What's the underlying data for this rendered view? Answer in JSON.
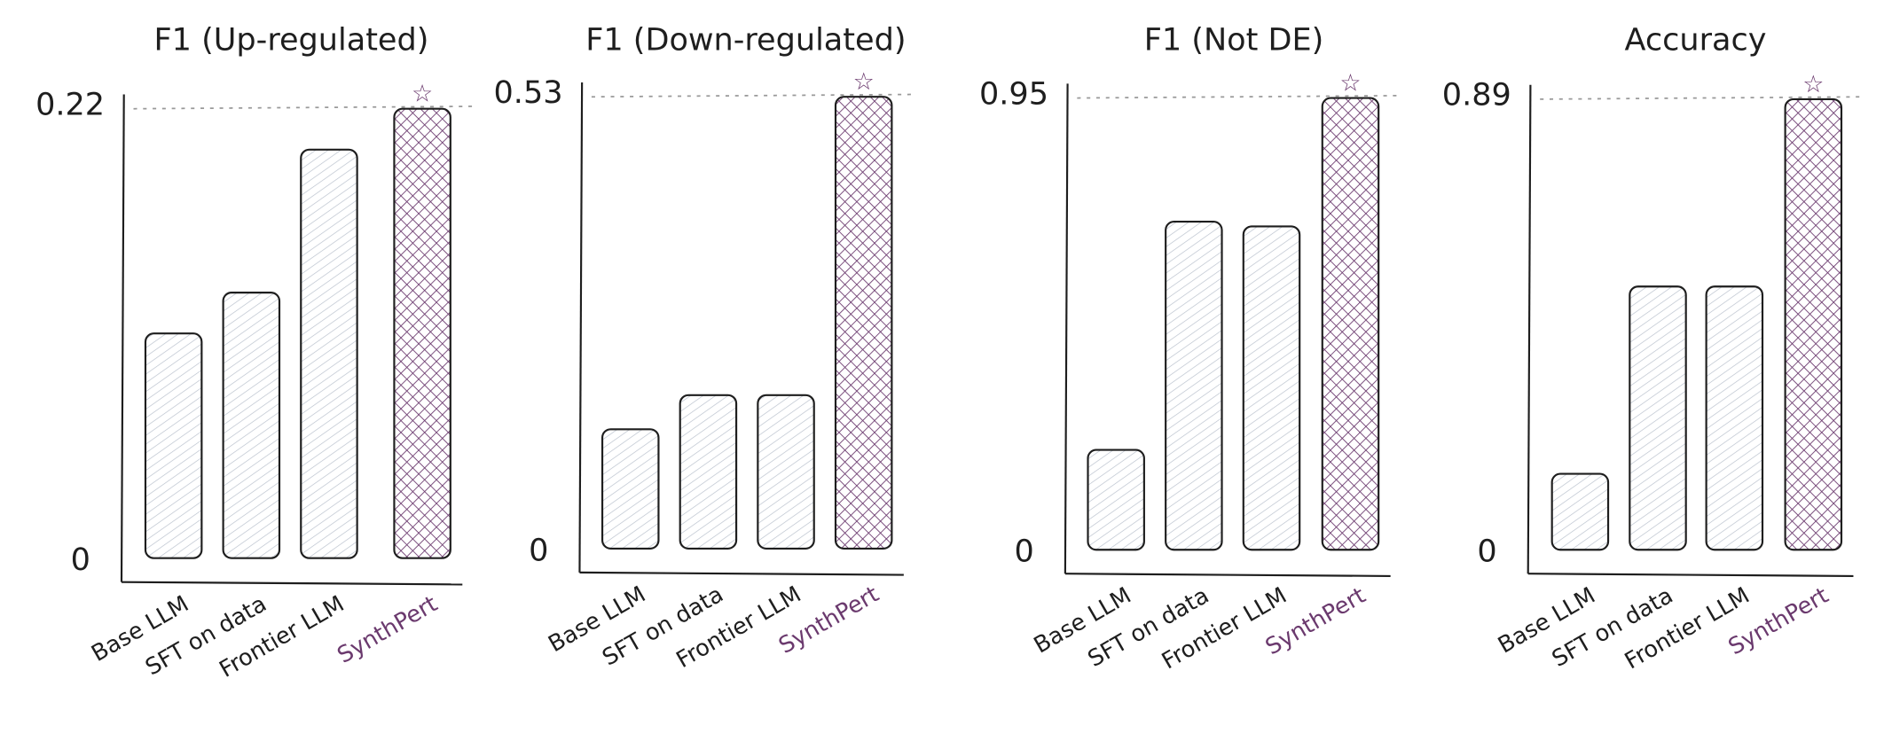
{
  "colors": {
    "highlight": "#6b3a6e",
    "bar_hatch": "#b8c0cc",
    "axis": "#1e1e1e",
    "ref_line": "#999999"
  },
  "chart_data": [
    {
      "type": "bar",
      "title": "F1 (Up-regulated)",
      "categories": [
        "Base LLM",
        "SFT on data",
        "Frontier LLM",
        "SynthPert"
      ],
      "values": [
        0.11,
        0.13,
        0.2,
        0.22
      ],
      "ylim": [
        0,
        0.22
      ],
      "yticks": [
        "0",
        "0.22"
      ],
      "highlight": "SynthPert",
      "marker": "star"
    },
    {
      "type": "bar",
      "title": "F1 (Down-regulated)",
      "categories": [
        "Base LLM",
        "SFT on data",
        "Frontier LLM",
        "SynthPert"
      ],
      "values": [
        0.14,
        0.18,
        0.18,
        0.53
      ],
      "ylim": [
        0,
        0.53
      ],
      "yticks": [
        "0",
        "0.53"
      ],
      "highlight": "SynthPert",
      "marker": "star"
    },
    {
      "type": "bar",
      "title": "F1 (Not DE)",
      "categories": [
        "Base LLM",
        "SFT on data",
        "Frontier LLM",
        "SynthPert"
      ],
      "values": [
        0.21,
        0.69,
        0.68,
        0.95
      ],
      "ylim": [
        0,
        0.95
      ],
      "yticks": [
        "0",
        "0.95"
      ],
      "highlight": "SynthPert",
      "marker": "star"
    },
    {
      "type": "bar",
      "title": "Accuracy",
      "categories": [
        "Base LLM",
        "SFT on data",
        "Frontier LLM",
        "SynthPert"
      ],
      "values": [
        0.15,
        0.52,
        0.52,
        0.89
      ],
      "ylim": [
        0,
        0.89
      ],
      "yticks": [
        "0",
        "0.89"
      ],
      "highlight": "SynthPert",
      "marker": "star"
    }
  ]
}
